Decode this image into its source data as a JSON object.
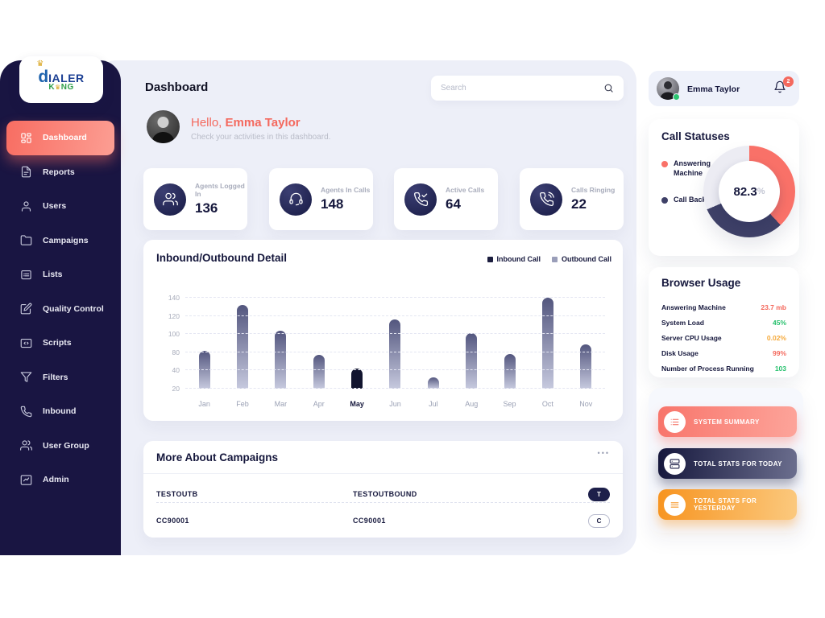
{
  "logo": {
    "crown": "♛",
    "d": "d",
    "rest": "IALER",
    "k": "K",
    "k_crown": "♛",
    "ng": "NG"
  },
  "sidebar": {
    "items": [
      {
        "label": "Dashboard",
        "active": true
      },
      {
        "label": "Reports"
      },
      {
        "label": "Users"
      },
      {
        "label": "Campaigns"
      },
      {
        "label": "Lists"
      },
      {
        "label": "Quality Control"
      },
      {
        "label": "Scripts"
      },
      {
        "label": "Filters"
      },
      {
        "label": "Inbound"
      },
      {
        "label": "User Group"
      },
      {
        "label": "Admin"
      }
    ]
  },
  "header": {
    "title": "Dashboard",
    "search_placeholder": "Search"
  },
  "greeting": {
    "hello": "Hello, ",
    "name": "Emma Taylor",
    "subtitle": "Check your activities in this dashboard."
  },
  "stats": [
    {
      "label": "Agents Logged In",
      "value": "136"
    },
    {
      "label": "Agents In Calls",
      "value": "148"
    },
    {
      "label": "Active Calls",
      "value": "64"
    },
    {
      "label": "Calls Ringing",
      "value": "22"
    }
  ],
  "chart": {
    "title": "Inbound/Outbound Detail",
    "legend": [
      {
        "label": "Inbound Call",
        "color": "#1b1d3e"
      },
      {
        "label": "Outbound Call",
        "color": "#9a9eb9"
      }
    ]
  },
  "chart_data": {
    "type": "bar",
    "title": "Inbound/Outbound Detail",
    "categories": [
      "Jan",
      "Feb",
      "Mar",
      "Apr",
      "May",
      "Jun",
      "Jul",
      "Aug",
      "Sep",
      "Oct",
      "Nov"
    ],
    "values": [
      82,
      132,
      104,
      75,
      44,
      116,
      32,
      101,
      76,
      141,
      89
    ],
    "highlighted_category": "May",
    "yticks": [
      20,
      40,
      80,
      100,
      120,
      140
    ],
    "xlabel": "",
    "ylabel": "",
    "legend": [
      "Inbound Call",
      "Outbound Call"
    ],
    "legend_position": "top-right",
    "grid": "dashed-horizontal",
    "bar_color_top": "#53567e",
    "bar_color_bottom": "#c6c9de",
    "highlight_color": "#12152f"
  },
  "campaigns": {
    "title": "More About Campaigns",
    "menu": "•••",
    "rows": [
      {
        "col1": "TESTOUTB",
        "col2": "TESTOUTBOUND",
        "badge": "T",
        "badge_style": "filled"
      },
      {
        "col1": "CC90001",
        "col2": "CC90001",
        "badge": "C",
        "badge_style": "outline"
      }
    ]
  },
  "user_chip": {
    "name": "Emma Taylor",
    "notification_count": "2"
  },
  "call_statuses": {
    "title": "Call Statuses",
    "legend": [
      {
        "label": "Answering Machine",
        "color": "#f97168"
      },
      {
        "label": "Call Back",
        "color": "#3e4067"
      }
    ],
    "donut": {
      "center_value": "82.3",
      "percent_sign": "%",
      "track_color": "#ececf3",
      "segments": [
        {
          "name": "Answering Machine",
          "color": "#f97168",
          "start_deg": 0,
          "end_deg": 137
        },
        {
          "name": "Call Back",
          "color": "#3e4067",
          "start_deg": 137,
          "end_deg": 247
        }
      ]
    }
  },
  "browser_usage": {
    "title": "Browser Usage",
    "rows": [
      {
        "label": "Answering Machine",
        "value": "23.7 mb",
        "color": "#f4685c"
      },
      {
        "label": "System Load",
        "value": "45%",
        "color": "#27c06d"
      },
      {
        "label": "Server CPU Usage",
        "value": "0.02%",
        "color": "#f5a93b"
      },
      {
        "label": "Disk Usage",
        "value": "99%",
        "color": "#f4685c"
      },
      {
        "label": "Number of Process Running",
        "value": "103",
        "color": "#27c06d"
      }
    ]
  },
  "actions": [
    {
      "label": "SYSTEM SUMMARY",
      "icon": "checklist-icon",
      "gradient": [
        "#f8756b",
        "#fda49a"
      ],
      "icon_color": "#f4685c"
    },
    {
      "label": "TOTAL STATS FOR TODAY",
      "icon": "server-icon",
      "gradient": [
        "#15173c",
        "#6b6e8e"
      ],
      "icon_color": "#1b1d47"
    },
    {
      "label": "TOTAL STATS FOR YESTERDAY",
      "icon": "menu-lines-icon",
      "gradient": [
        "#f79420",
        "#fbc97e"
      ],
      "icon_color": "#f79420"
    }
  ]
}
